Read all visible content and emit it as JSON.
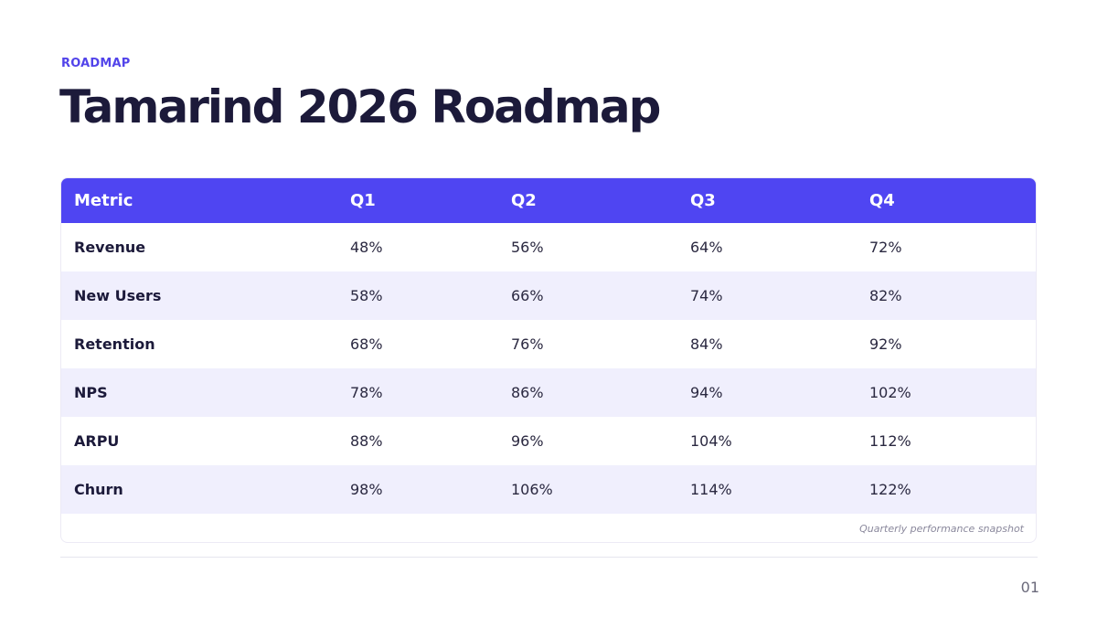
{
  "slide": {
    "eyebrow": "ROADMAP",
    "title": "Tamarind 2026 Roadmap",
    "page_number": "01"
  },
  "table": {
    "headers": [
      "Metric",
      "Q1",
      "Q2",
      "Q3",
      "Q4"
    ],
    "rows": [
      {
        "metric": "Revenue",
        "q1": "48%",
        "q2": "56%",
        "q3": "64%",
        "q4": "72%"
      },
      {
        "metric": "New Users",
        "q1": "58%",
        "q2": "66%",
        "q3": "74%",
        "q4": "82%"
      },
      {
        "metric": "Retention",
        "q1": "68%",
        "q2": "76%",
        "q3": "84%",
        "q4": "92%"
      },
      {
        "metric": "NPS",
        "q1": "78%",
        "q2": "86%",
        "q3": "94%",
        "q4": "102%"
      },
      {
        "metric": "ARPU",
        "q1": "88%",
        "q2": "96%",
        "q3": "104%",
        "q4": "112%"
      },
      {
        "metric": "Churn",
        "q1": "98%",
        "q2": "106%",
        "q3": "114%",
        "q4": "122%"
      }
    ],
    "caption": "Quarterly performance snapshot"
  },
  "colors": {
    "accent": "#4f45f2",
    "eyebrow": "#5244ea",
    "title": "#1c1a3a",
    "stripe": "#f0effd"
  }
}
